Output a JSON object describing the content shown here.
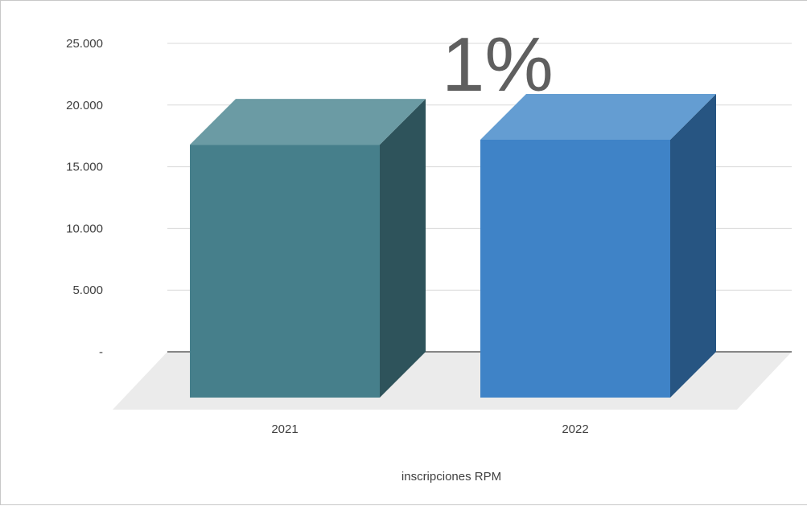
{
  "chart_data": {
    "type": "bar",
    "categories": [
      "2021",
      "2022"
    ],
    "values": [
      20500,
      20900
    ],
    "ytick_labels": [
      "-",
      "5.000",
      "10.000",
      "15.000",
      "20.000",
      "25.000"
    ],
    "ylim": [
      0,
      25000
    ],
    "xlabel": "inscripciones RPM",
    "annotation": "1%",
    "colors": {
      "bar_2021_front": "#467f8b",
      "bar_2021_top": "#6b9ba4",
      "bar_2021_side": "#2e535b",
      "bar_2022_front": "#3f83c7",
      "bar_2022_top": "#649dd2",
      "bar_2022_side": "#275582",
      "floor": "#ebebeb",
      "gridline": "#d9d9d9",
      "axis_line": "#404040"
    },
    "grid": true,
    "legend": "none"
  }
}
